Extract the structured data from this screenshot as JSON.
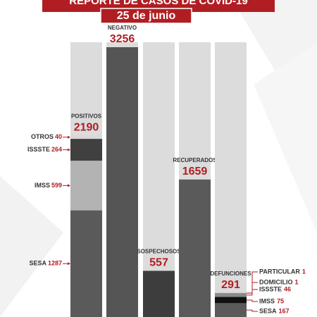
{
  "header": {
    "title": "REPORTE DE CASOS DE COVID-19",
    "date": "25 de junio"
  },
  "chart_data": {
    "type": "bar",
    "bars": [
      {
        "label": "POSITIVOS",
        "value": 2190,
        "color": "#5a5a5a",
        "segments": [
          {
            "name": "SESA",
            "value": 1287,
            "color": "#5a5a5a"
          },
          {
            "name": "IMSS",
            "value": 599,
            "color": "#b3b3b3"
          },
          {
            "name": "ISSSTE",
            "value": 264,
            "color": "#404040"
          },
          {
            "name": "OTROS",
            "value": 40,
            "color": "#d9d9d9"
          }
        ]
      },
      {
        "label": "NEGATIVO",
        "value": 3256,
        "color": "#555555"
      },
      {
        "label": "SOSPECHOSOS",
        "value": 557,
        "color": "#3d3d3d"
      },
      {
        "label": "RECUPERADOS",
        "value": 1659,
        "color": "#5a5a5a"
      },
      {
        "label": "DEFUNCIONES",
        "value": 291,
        "color": "#5a5a5a",
        "segments": [
          {
            "name": "SESA",
            "value": 167,
            "color": "#5a5a5a"
          },
          {
            "name": "IMSS",
            "value": 75,
            "color": "#111111"
          },
          {
            "name": "ISSSTE",
            "value": 46,
            "color": "#8a8a8a"
          },
          {
            "name": "DOMICILIO",
            "value": 1,
            "color": "#8a8a8a"
          },
          {
            "name": "PARTICULAR",
            "value": 1,
            "color": "#8a8a8a"
          }
        ]
      }
    ]
  }
}
